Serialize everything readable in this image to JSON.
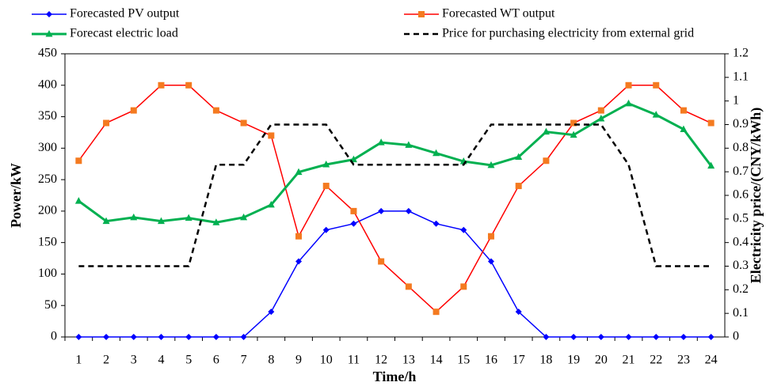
{
  "chart_data": {
    "type": "line",
    "x_label": "Time/h",
    "y_label": "Power/kW",
    "y2_label": "Electricity  price/(CNY/kWh)",
    "categories": [
      "1",
      "2",
      "3",
      "4",
      "5",
      "6",
      "7",
      "8",
      "9",
      "10",
      "11",
      "12",
      "13",
      "14",
      "15",
      "16",
      "17",
      "18",
      "19",
      "20",
      "21",
      "22",
      "23",
      "24"
    ],
    "series": [
      {
        "name": "Forecasted PV output",
        "color": "#0000ff",
        "marker": "diamond",
        "values": [
          0,
          0,
          0,
          0,
          0,
          0,
          0,
          40,
          120,
          170,
          180,
          200,
          200,
          180,
          170,
          120,
          40,
          0,
          0,
          0,
          0,
          0,
          0,
          0
        ]
      },
      {
        "name": "Forecasted WT output",
        "color": "#ff0000",
        "marker_color": "#f47a20",
        "marker": "square",
        "values": [
          280,
          340,
          360,
          400,
          400,
          360,
          340,
          320,
          160,
          240,
          200,
          120,
          80,
          40,
          80,
          160,
          240,
          280,
          340,
          360,
          400,
          400,
          360,
          340
        ]
      },
      {
        "name": "Forecast electric load",
        "color": "#00b050",
        "marker": "triangle",
        "values": [
          216,
          184,
          190,
          184,
          189,
          182,
          190,
          210,
          262,
          274,
          282,
          309,
          305,
          292,
          279,
          273,
          286,
          326,
          321,
          347,
          371,
          353,
          330,
          272
        ]
      },
      {
        "name": "Price for purchasing electricity from external grid",
        "color": "#000000",
        "dashed": true,
        "axis": "y2",
        "values": [
          0.3,
          0.3,
          0.3,
          0.3,
          0.3,
          0.73,
          0.73,
          0.9,
          0.9,
          0.9,
          0.73,
          0.73,
          0.73,
          0.73,
          0.73,
          0.9,
          0.9,
          0.9,
          0.9,
          0.9,
          0.73,
          0.3,
          0.3,
          0.3
        ]
      }
    ],
    "ylim": [
      0,
      450
    ],
    "yticks": [
      0,
      50,
      100,
      150,
      200,
      250,
      300,
      350,
      400,
      450
    ],
    "y2lim": [
      0,
      1.2
    ],
    "y2ticks": [
      0,
      0.1,
      0.2,
      0.3,
      0.4,
      0.5,
      0.6,
      0.7,
      0.8,
      0.9,
      1,
      1.1,
      1.2
    ]
  }
}
